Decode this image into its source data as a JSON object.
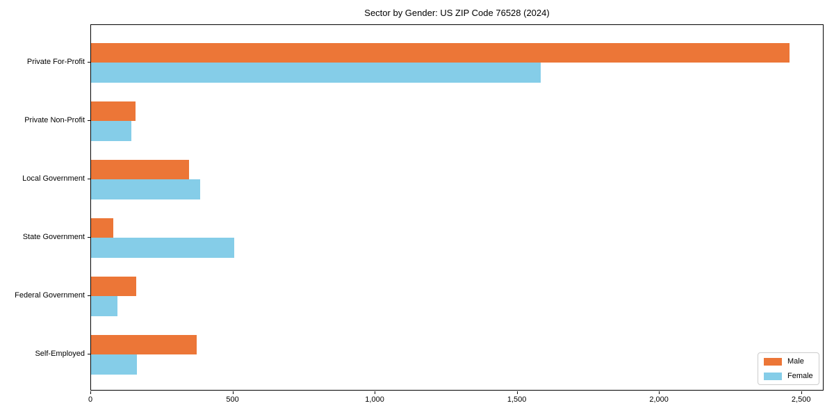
{
  "title": "Sector by Gender: US ZIP Code 76528 (2024)",
  "colors": {
    "male": "#ec7637",
    "female": "#85cde8",
    "spine": "#000000",
    "legend_border": "#cccccc",
    "background": "#ffffff"
  },
  "legend": {
    "entries": [
      {
        "label": "Male",
        "color": "#ec7637"
      },
      {
        "label": "Female",
        "color": "#85cde8"
      }
    ],
    "position": "lower right"
  },
  "chart_data": {
    "type": "bar",
    "orientation": "horizontal",
    "title": "Sector by Gender: US ZIP Code 76528 (2024)",
    "categories": [
      "Private For-Profit",
      "Private Non-Profit",
      "Local Government",
      "State Government",
      "Federal Government",
      "Self-Employed"
    ],
    "series": [
      {
        "name": "Male",
        "color": "#ec7637",
        "values": [
          2456,
          157,
          345,
          79,
          158,
          371
        ]
      },
      {
        "name": "Female",
        "color": "#85cde8",
        "values": [
          1582,
          142,
          383,
          503,
          93,
          162
        ]
      }
    ],
    "xlabel": "",
    "ylabel": "",
    "xlim": [
      0,
      2579
    ],
    "xticks": [
      0,
      500,
      1000,
      1500,
      2000,
      2500
    ],
    "xtick_labels": [
      "0",
      "500",
      "1,000",
      "1,500",
      "2,000",
      "2,500"
    ],
    "grid": false,
    "legend_position": "lower right"
  }
}
